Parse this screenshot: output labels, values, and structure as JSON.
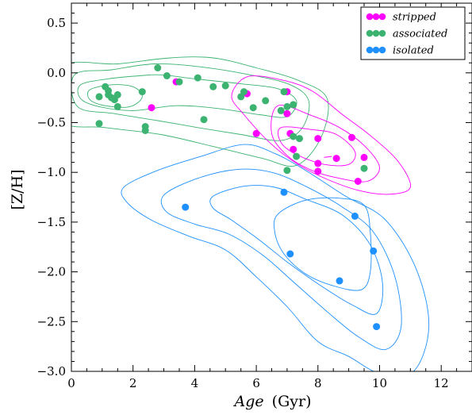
{
  "chart_data": {
    "type": "scatter",
    "xlabel_italic": "Age",
    "xlabel_unit": "(Gyr)",
    "ylabel": "[Z/H]",
    "xlim": [
      0,
      13
    ],
    "ylim": [
      -3.0,
      0.7
    ],
    "xticks": [
      0,
      2,
      4,
      6,
      8,
      10,
      12
    ],
    "yticks": [
      0.5,
      0.0,
      -0.5,
      -1.0,
      -1.5,
      -2.0,
      -2.5,
      -3.0
    ],
    "xtick_labels": [
      "0",
      "2",
      "4",
      "6",
      "8",
      "10",
      "12"
    ],
    "ytick_labels": [
      "0.5",
      "0.0",
      "−0.5",
      "−1.0",
      "−1.5",
      "−2.0",
      "−2.5",
      "−3.0"
    ],
    "legend_position": "top-right",
    "grid": false,
    "series": [
      {
        "name": "stripped",
        "color": "#ff00ff",
        "points": [
          [
            3.4,
            -0.09
          ],
          [
            2.6,
            -0.35
          ],
          [
            5.7,
            -0.21
          ],
          [
            6.0,
            -0.61
          ],
          [
            7.0,
            -0.19
          ],
          [
            7.0,
            -0.41
          ],
          [
            7.1,
            -0.61
          ],
          [
            7.2,
            -0.77
          ],
          [
            8.0,
            -0.66
          ],
          [
            8.0,
            -0.91
          ],
          [
            8.0,
            -0.99
          ],
          [
            8.6,
            -0.86
          ],
          [
            9.1,
            -0.65
          ],
          [
            9.3,
            -1.09
          ],
          [
            9.5,
            -0.85
          ]
        ]
      },
      {
        "name": "associated",
        "color": "#3cb371",
        "points": [
          [
            0.9,
            -0.24
          ],
          [
            1.1,
            -0.14
          ],
          [
            1.2,
            -0.22
          ],
          [
            1.2,
            -0.18
          ],
          [
            1.3,
            -0.25
          ],
          [
            1.4,
            -0.27
          ],
          [
            1.5,
            -0.22
          ],
          [
            1.5,
            -0.34
          ],
          [
            2.3,
            -0.19
          ],
          [
            2.4,
            -0.54
          ],
          [
            2.4,
            -0.58
          ],
          [
            2.8,
            0.05
          ],
          [
            3.1,
            -0.03
          ],
          [
            3.5,
            -0.09
          ],
          [
            4.1,
            -0.05
          ],
          [
            4.3,
            -0.47
          ],
          [
            4.6,
            -0.14
          ],
          [
            5.0,
            -0.13
          ],
          [
            5.5,
            -0.24
          ],
          [
            5.6,
            -0.19
          ],
          [
            5.9,
            -0.35
          ],
          [
            6.3,
            -0.28
          ],
          [
            6.8,
            -0.38
          ],
          [
            6.9,
            -0.19
          ],
          [
            7.0,
            -0.34
          ],
          [
            7.2,
            -0.32
          ],
          [
            7.2,
            -0.64
          ],
          [
            7.3,
            -0.84
          ],
          [
            7.4,
            -0.66
          ],
          [
            7.0,
            -0.98
          ],
          [
            9.5,
            -0.96
          ],
          [
            0.9,
            -0.51
          ]
        ]
      },
      {
        "name": "isolated",
        "color": "#1e90ff",
        "points": [
          [
            3.7,
            -1.35
          ],
          [
            6.9,
            -1.2
          ],
          [
            7.1,
            -1.82
          ],
          [
            8.7,
            -2.09
          ],
          [
            9.2,
            -1.44
          ],
          [
            9.8,
            -1.79
          ],
          [
            9.9,
            -2.55
          ]
        ]
      }
    ],
    "contours": [
      {
        "series": "associated",
        "color": "#3cb371",
        "levels": [
          [
            [
              -0.3,
              0.06
            ],
            [
              1.5,
              0.09
            ],
            [
              3.2,
              0.15
            ],
            [
              4.6,
              0.15
            ],
            [
              6.0,
              0.05
            ],
            [
              7.4,
              -0.08
            ],
            [
              8.3,
              -0.26
            ],
            [
              8.1,
              -0.65
            ],
            [
              7.3,
              -0.93
            ],
            [
              6.2,
              -0.86
            ],
            [
              4.6,
              -0.74
            ],
            [
              2.9,
              -0.62
            ],
            [
              1.1,
              -0.55
            ],
            [
              -0.3,
              -0.48
            ]
          ],
          [
            [
              0.1,
              -0.02
            ],
            [
              1.3,
              0.03
            ],
            [
              2.7,
              0.09
            ],
            [
              4.2,
              0.06
            ],
            [
              5.8,
              -0.02
            ],
            [
              7.1,
              -0.12
            ],
            [
              7.7,
              -0.28
            ],
            [
              7.5,
              -0.55
            ],
            [
              6.8,
              -0.68
            ],
            [
              5.5,
              -0.62
            ],
            [
              4.1,
              -0.55
            ],
            [
              2.8,
              -0.48
            ],
            [
              1.4,
              -0.41
            ],
            [
              0.2,
              -0.34
            ]
          ],
          [
            [
              0.3,
              -0.12
            ],
            [
              1.2,
              -0.06
            ],
            [
              2.2,
              -0.03
            ],
            [
              2.9,
              -0.02
            ],
            [
              4.0,
              -0.06
            ],
            [
              5.5,
              -0.11
            ],
            [
              6.7,
              -0.16
            ],
            [
              7.3,
              -0.28
            ],
            [
              7.0,
              -0.44
            ],
            [
              6.1,
              -0.42
            ],
            [
              4.8,
              -0.36
            ],
            [
              3.4,
              -0.33
            ],
            [
              2.0,
              -0.38
            ],
            [
              0.9,
              -0.34
            ],
            [
              0.3,
              -0.26
            ]
          ],
          [
            [
              0.6,
              -0.17
            ],
            [
              1.3,
              -0.12
            ],
            [
              2.0,
              -0.14
            ],
            [
              2.3,
              -0.24
            ],
            [
              1.9,
              -0.34
            ],
            [
              1.1,
              -0.33
            ],
            [
              0.6,
              -0.27
            ]
          ]
        ]
      },
      {
        "series": "stripped",
        "color": "#ff00ff",
        "levels": [
          [
            [
              5.7,
              -0.04
            ],
            [
              6.8,
              -0.07
            ],
            [
              7.8,
              -0.18
            ],
            [
              8.8,
              -0.42
            ],
            [
              9.7,
              -0.63
            ],
            [
              10.6,
              -0.89
            ],
            [
              11.0,
              -1.15
            ],
            [
              10.3,
              -1.22
            ],
            [
              9.3,
              -1.18
            ],
            [
              8.3,
              -1.07
            ],
            [
              7.4,
              -0.93
            ],
            [
              6.5,
              -0.72
            ],
            [
              5.6,
              -0.42
            ],
            [
              5.2,
              -0.23
            ]
          ],
          [
            [
              6.7,
              -0.33
            ],
            [
              7.8,
              -0.43
            ],
            [
              8.7,
              -0.55
            ],
            [
              9.5,
              -0.73
            ],
            [
              10.0,
              -0.95
            ],
            [
              9.6,
              -1.09
            ],
            [
              8.7,
              -1.06
            ],
            [
              7.8,
              -0.98
            ],
            [
              7.0,
              -0.83
            ],
            [
              6.5,
              -0.61
            ]
          ],
          [
            [
              6.8,
              -0.55
            ],
            [
              7.8,
              -0.57
            ],
            [
              8.6,
              -0.62
            ],
            [
              9.2,
              -0.79
            ],
            [
              9.0,
              -0.92
            ],
            [
              8.2,
              -0.92
            ],
            [
              7.3,
              -0.82
            ],
            [
              6.8,
              -0.7
            ]
          ],
          [
            [
              8.2,
              -0.85
            ],
            [
              8.45,
              -0.84
            ]
          ]
        ]
      },
      {
        "series": "isolated",
        "color": "#1e90ff",
        "levels": [
          [
            [
              1.7,
              -1.15
            ],
            [
              2.8,
              -0.98
            ],
            [
              4.2,
              -0.84
            ],
            [
              5.6,
              -0.72
            ],
            [
              6.6,
              -0.81
            ],
            [
              7.6,
              -0.98
            ],
            [
              8.9,
              -1.24
            ],
            [
              10.2,
              -1.48
            ],
            [
              11.2,
              -1.98
            ],
            [
              11.6,
              -2.55
            ],
            [
              11.1,
              -3.0
            ],
            [
              10.0,
              -3.02
            ],
            [
              9.0,
              -2.85
            ],
            [
              8.0,
              -2.7
            ],
            [
              7.0,
              -2.35
            ],
            [
              6.0,
              -2.05
            ],
            [
              5.0,
              -1.78
            ],
            [
              3.8,
              -1.64
            ],
            [
              2.6,
              -1.48
            ],
            [
              1.8,
              -1.3
            ]
          ],
          [
            [
              3.0,
              -1.23
            ],
            [
              4.1,
              -1.06
            ],
            [
              5.4,
              -0.97
            ],
            [
              6.5,
              -1.0
            ],
            [
              7.6,
              -1.14
            ],
            [
              8.8,
              -1.35
            ],
            [
              9.8,
              -1.6
            ],
            [
              10.5,
              -2.05
            ],
            [
              10.7,
              -2.55
            ],
            [
              10.2,
              -2.78
            ],
            [
              9.3,
              -2.65
            ],
            [
              8.3,
              -2.4
            ],
            [
              7.2,
              -2.1
            ],
            [
              6.2,
              -1.83
            ],
            [
              5.1,
              -1.62
            ],
            [
              4.0,
              -1.52
            ],
            [
              3.1,
              -1.4
            ]
          ],
          [
            [
              4.6,
              -1.24
            ],
            [
              5.6,
              -1.14
            ],
            [
              6.6,
              -1.15
            ],
            [
              7.6,
              -1.27
            ],
            [
              8.8,
              -1.43
            ],
            [
              9.7,
              -1.73
            ],
            [
              10.1,
              -2.12
            ],
            [
              9.9,
              -2.42
            ],
            [
              9.1,
              -2.33
            ],
            [
              8.1,
              -2.14
            ],
            [
              7.0,
              -1.9
            ],
            [
              6.1,
              -1.68
            ],
            [
              5.2,
              -1.48
            ],
            [
              4.6,
              -1.36
            ]
          ],
          [
            [
              6.7,
              -1.42
            ],
            [
              7.6,
              -1.28
            ],
            [
              8.7,
              -1.26
            ],
            [
              9.5,
              -1.33
            ],
            [
              9.7,
              -1.6
            ],
            [
              9.7,
              -2.0
            ],
            [
              9.4,
              -2.18
            ],
            [
              8.5,
              -2.14
            ],
            [
              7.6,
              -2.02
            ],
            [
              6.9,
              -1.82
            ],
            [
              6.6,
              -1.6
            ]
          ]
        ]
      }
    ]
  }
}
